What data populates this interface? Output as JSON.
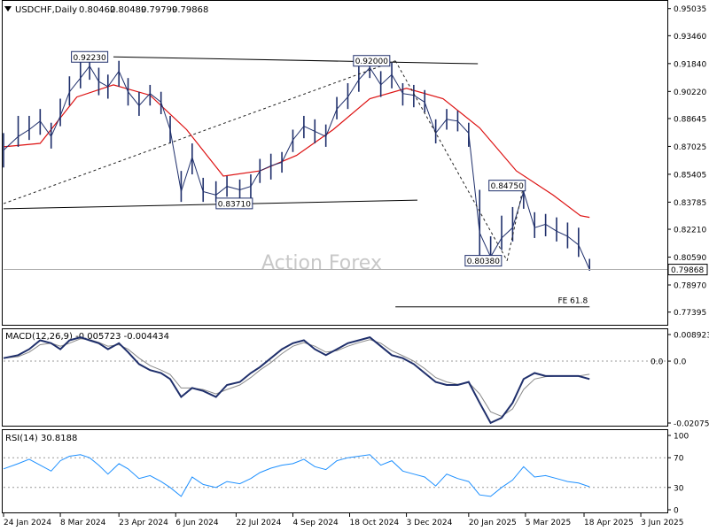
{
  "chart_data": [
    {
      "panel": "price",
      "type": "line",
      "title": "USDCHF,Daily",
      "ohlc": {
        "open": "0.80462",
        "high": "0.80489",
        "low": "0.79799",
        "close": "0.79868"
      },
      "watermark": "Action Forex",
      "ylim": [
        0.7681,
        0.9533
      ],
      "ticks": [
        "0.95035",
        "0.93460",
        "0.91840",
        "0.90220",
        "0.88645",
        "0.87025",
        "0.85405",
        "0.83785",
        "0.82210",
        "0.80590",
        "0.78970",
        "0.77395"
      ],
      "current_price_label": "0.79868",
      "current_price": 0.79868,
      "series": [
        {
          "name": "",
          "style": "bars",
          "color": "#1f2f6b",
          "x_index": [
            0,
            8,
            14,
            20,
            26,
            31,
            36,
            42,
            47,
            52,
            57,
            63,
            68,
            74,
            80,
            86,
            91,
            97,
            103,
            109,
            116,
            122,
            129,
            135,
            140,
            146,
            152,
            158,
            164,
            170,
            176,
            182,
            188,
            194,
            200,
            206,
            212,
            218,
            224,
            230,
            236,
            242,
            248,
            254,
            260,
            266,
            272,
            278,
            284,
            290,
            296,
            302,
            308,
            314,
            320
          ],
          "close": [
            0.868,
            0.876,
            0.88,
            0.885,
            0.876,
            0.888,
            0.902,
            0.91,
            0.917,
            0.908,
            0.905,
            0.914,
            0.902,
            0.894,
            0.901,
            0.896,
            0.88,
            0.844,
            0.864,
            0.844,
            0.842,
            0.847,
            0.845,
            0.847,
            0.856,
            0.859,
            0.861,
            0.874,
            0.882,
            0.879,
            0.876,
            0.892,
            0.899,
            0.909,
            0.916,
            0.906,
            0.912,
            0.901,
            0.9,
            0.896,
            0.878,
            0.886,
            0.885,
            0.878,
            0.82,
            0.806,
            0.817,
            0.823,
            0.844,
            0.823,
            0.825,
            0.821,
            0.818,
            0.813,
            0.7987
          ],
          "low": [
            0.858,
            0.87,
            0.874,
            0.877,
            0.869,
            0.882,
            0.894,
            0.904,
            0.909,
            0.9,
            0.898,
            0.905,
            0.894,
            0.888,
            0.894,
            0.889,
            0.872,
            0.838,
            0.854,
            0.838,
            0.838,
            0.841,
            0.839,
            0.84,
            0.849,
            0.851,
            0.855,
            0.867,
            0.875,
            0.872,
            0.87,
            0.886,
            0.892,
            0.902,
            0.91,
            0.899,
            0.904,
            0.894,
            0.893,
            0.89,
            0.872,
            0.88,
            0.879,
            0.87,
            0.8038,
            0.8038,
            0.81,
            0.815,
            0.834,
            0.817,
            0.818,
            0.815,
            0.811,
            0.806,
            0.798
          ],
          "high": [
            0.878,
            0.888,
            0.888,
            0.892,
            0.884,
            0.898,
            0.911,
            0.92,
            0.9223,
            0.916,
            0.912,
            0.92,
            0.91,
            0.902,
            0.906,
            0.902,
            0.888,
            0.856,
            0.872,
            0.852,
            0.85,
            0.853,
            0.851,
            0.854,
            0.863,
            0.866,
            0.867,
            0.88,
            0.888,
            0.886,
            0.883,
            0.899,
            0.907,
            0.917,
            0.92,
            0.914,
            0.919,
            0.907,
            0.906,
            0.903,
            0.886,
            0.892,
            0.891,
            0.884,
            0.845,
            0.818,
            0.83,
            0.835,
            0.8475,
            0.832,
            0.831,
            0.829,
            0.826,
            0.823,
            0.8049
          ]
        },
        {
          "name": "",
          "style": "moving-average",
          "color": "#dd1111",
          "x_index": [
            0,
            20,
            40,
            60,
            80,
            100,
            120,
            140,
            160,
            180,
            200,
            220,
            240,
            260,
            280,
            300,
            315,
            320
          ],
          "values": [
            0.87,
            0.872,
            0.899,
            0.906,
            0.9,
            0.88,
            0.853,
            0.856,
            0.865,
            0.88,
            0.898,
            0.904,
            0.898,
            0.881,
            0.856,
            0.842,
            0.83,
            0.829
          ]
        }
      ],
      "annotations": {
        "trendlines": [
          {
            "style": "solid",
            "color": "#000000",
            "from": [
              0,
              0.834
            ],
            "to": [
              226,
              0.839
            ]
          },
          {
            "style": "solid",
            "color": "#000000",
            "from": [
              60,
              0.9223
            ],
            "to": [
              259,
              0.9183
            ]
          },
          {
            "style": "dashed",
            "color": "#222222",
            "from": [
              0,
              0.837
            ],
            "to": [
              214,
              0.92
            ]
          },
          {
            "style": "dashed",
            "color": "#222222",
            "from": [
              214,
              0.92
            ],
            "to": [
              275,
              0.8038
            ]
          },
          {
            "style": "dashed",
            "color": "#222222",
            "from": [
              275,
              0.8038
            ],
            "to": [
              284,
              0.8475
            ]
          }
        ],
        "fe_line": {
          "label": "FE 61.8",
          "from_index": 214,
          "to_index": 320,
          "value": 0.777
        },
        "price_labels": [
          {
            "text": "0.92230",
            "index": 47,
            "value": 0.9223
          },
          {
            "text": "0.92000",
            "index": 201,
            "value": 0.92
          },
          {
            "text": "0.83710",
            "index": 126,
            "value": 0.8371
          },
          {
            "text": "0.84750",
            "index": 275,
            "value": 0.8475
          },
          {
            "text": "0.80380",
            "index": 262,
            "value": 0.8038
          }
        ]
      }
    },
    {
      "panel": "macd",
      "type": "line",
      "title": "MACD(12,26,9) -0.005723 -0.004434",
      "ylim": [
        -0.02076,
        0.00892
      ],
      "ticks": [
        "0.008923",
        "0.0",
        "-0.020759"
      ],
      "zero_label": "0.0",
      "series": [
        {
          "name": "",
          "color": "#1f2f6b",
          "x_index": [
            0,
            8,
            14,
            20,
            26,
            31,
            36,
            42,
            47,
            52,
            57,
            63,
            68,
            74,
            80,
            86,
            91,
            97,
            103,
            109,
            116,
            122,
            129,
            135,
            140,
            146,
            152,
            158,
            164,
            170,
            176,
            182,
            188,
            194,
            200,
            206,
            212,
            218,
            224,
            230,
            236,
            242,
            248,
            254,
            260,
            266,
            272,
            278,
            284,
            290,
            296,
            302,
            308,
            314,
            320
          ],
          "values": [
            0.001,
            0.002,
            0.004,
            0.007,
            0.006,
            0.004,
            0.007,
            0.008,
            0.007,
            0.006,
            0.004,
            0.006,
            0.003,
            -0.001,
            -0.003,
            -0.004,
            -0.006,
            -0.012,
            -0.009,
            -0.01,
            -0.012,
            -0.008,
            -0.007,
            -0.004,
            -0.002,
            0.001,
            0.004,
            0.006,
            0.007,
            0.004,
            0.002,
            0.004,
            0.006,
            0.007,
            0.008,
            0.005,
            0.002,
            0.001,
            -0.001,
            -0.004,
            -0.007,
            -0.008,
            -0.008,
            -0.007,
            -0.014,
            -0.0207,
            -0.019,
            -0.014,
            -0.006,
            -0.004,
            -0.005,
            -0.005,
            -0.005,
            -0.005,
            -0.006
          ]
        },
        {
          "name": "",
          "color": "#8a8a8a",
          "x_index": [
            0,
            8,
            14,
            20,
            26,
            31,
            36,
            42,
            47,
            52,
            57,
            63,
            68,
            74,
            80,
            86,
            91,
            97,
            103,
            109,
            116,
            122,
            129,
            135,
            140,
            146,
            152,
            158,
            164,
            170,
            176,
            182,
            188,
            194,
            200,
            206,
            212,
            218,
            224,
            230,
            236,
            242,
            248,
            254,
            260,
            266,
            272,
            278,
            284,
            290,
            296,
            302,
            308,
            314,
            320
          ],
          "values": [
            0.001,
            0.0015,
            0.003,
            0.0055,
            0.006,
            0.005,
            0.006,
            0.0075,
            0.0072,
            0.0063,
            0.005,
            0.0055,
            0.004,
            0.001,
            -0.0015,
            -0.003,
            -0.0045,
            -0.009,
            -0.009,
            -0.0095,
            -0.011,
            -0.0095,
            -0.008,
            -0.0055,
            -0.003,
            -0.0005,
            0.0025,
            0.005,
            0.0062,
            0.005,
            0.003,
            0.0035,
            0.005,
            0.0062,
            0.0072,
            0.006,
            0.0035,
            0.0018,
            0.0,
            -0.0025,
            -0.0055,
            -0.007,
            -0.0078,
            -0.0072,
            -0.011,
            -0.017,
            -0.0185,
            -0.016,
            -0.0095,
            -0.006,
            -0.0052,
            -0.005,
            -0.005,
            -0.005,
            -0.0044
          ]
        }
      ]
    },
    {
      "panel": "rsi",
      "type": "line",
      "title": "RSI(14) 30.8188",
      "ylim": [
        0,
        100
      ],
      "ticks": [
        "100",
        "70",
        "30",
        "0"
      ],
      "levels": [
        70,
        30
      ],
      "series": [
        {
          "name": "",
          "color": "#1e90ff",
          "x_index": [
            0,
            8,
            14,
            20,
            26,
            31,
            36,
            42,
            47,
            52,
            57,
            63,
            68,
            74,
            80,
            86,
            91,
            97,
            103,
            109,
            116,
            122,
            129,
            135,
            140,
            146,
            152,
            158,
            164,
            170,
            176,
            182,
            188,
            194,
            200,
            206,
            212,
            218,
            224,
            230,
            236,
            242,
            248,
            254,
            260,
            266,
            272,
            278,
            284,
            290,
            296,
            302,
            308,
            314,
            320
          ],
          "values": [
            55,
            62,
            68,
            60,
            52,
            66,
            72,
            74,
            70,
            60,
            48,
            62,
            55,
            42,
            46,
            38,
            30,
            18,
            44,
            34,
            30,
            38,
            35,
            42,
            50,
            56,
            60,
            62,
            68,
            58,
            54,
            66,
            70,
            72,
            74,
            60,
            66,
            52,
            48,
            44,
            32,
            48,
            42,
            38,
            20,
            18,
            30,
            40,
            58,
            44,
            46,
            42,
            38,
            36,
            31
          ]
        }
      ]
    },
    {
      "panel": "x-axis",
      "categories": [
        "24 Jan 2024",
        "8 Mar 2024",
        "23 Apr 2024",
        "6 Jun 2024",
        "22 Jul 2024",
        "4 Sep 2024",
        "18 Oct 2024",
        "3 Dec 2024",
        "20 Jan 2025",
        "5 Mar 2025",
        "18 Apr 2025",
        "3 Jun 2025"
      ],
      "category_index": [
        0,
        31,
        63,
        94,
        127,
        158,
        189,
        220,
        254,
        285,
        317,
        348
      ]
    }
  ]
}
